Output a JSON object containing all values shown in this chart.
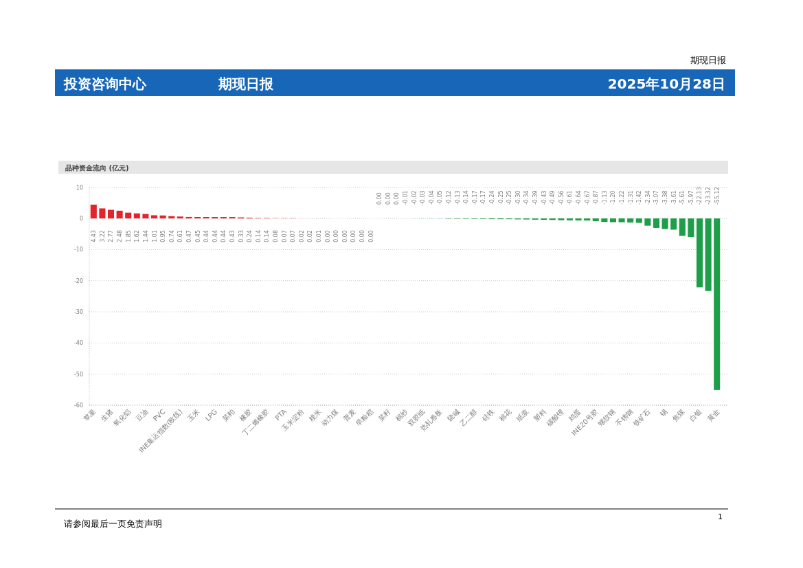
{
  "chart_data": {
    "type": "bar",
    "title": "品种资金流向 (亿元)",
    "annotations": [
      "期现日报",
      "投资咨询中心",
      "期现日报",
      "2025年10月28日",
      "请参阅最后一页免责声明",
      "1"
    ],
    "categories": [
      "苹果",
      null,
      "生猪",
      null,
      "氧化铝",
      null,
      "豆油",
      null,
      "PVC",
      null,
      "INE集运指数(欧线)",
      null,
      "玉米",
      null,
      "LPG",
      null,
      "菜粕",
      null,
      "橡胶",
      null,
      "丁二烯橡胶",
      null,
      "PTA",
      null,
      "玉米淀粉",
      null,
      "粳米",
      null,
      "动力煤",
      null,
      "普麦",
      null,
      "早籼稻",
      null,
      "菜籽",
      null,
      "棉纱",
      null,
      "双胶纸",
      null,
      "热轧卷板",
      null,
      "烧碱",
      null,
      "乙二醇",
      null,
      "硅铁",
      null,
      "棉花",
      null,
      "纸浆",
      null,
      "塑料",
      null,
      "碳酸锂",
      null,
      "鸡蛋",
      null,
      "INE20号胶",
      null,
      "螺纹钢",
      null,
      "不锈钢",
      null,
      "铁矿石",
      null,
      "锡",
      null,
      "焦煤",
      null,
      "白银",
      null,
      "黄金"
    ],
    "series": [
      {
        "color": "#e3242b",
        "values": [
          4.43,
          3.22,
          2.77,
          2.48,
          1.85,
          1.62,
          1.44,
          1.01,
          0.95,
          0.74,
          0.61,
          0.47,
          0.45,
          0.44,
          0.44,
          0.44,
          0.43,
          0.33,
          0.24,
          0.14,
          0.14,
          0.08,
          0.07,
          0.07,
          0.02,
          0.02,
          0.01,
          0,
          0,
          0,
          0,
          0,
          0,
          null,
          null,
          null,
          null,
          null,
          null,
          null,
          null,
          null,
          null,
          null,
          null,
          null,
          null,
          null,
          null,
          null,
          null,
          null,
          null,
          null,
          null,
          null,
          null,
          null,
          null,
          null,
          null,
          null,
          null,
          null,
          null,
          null,
          null,
          null,
          null,
          null,
          null,
          null,
          null
        ],
        "value_labels": [
          "4.43",
          "3.22",
          "2.77",
          "2.48",
          "1.85",
          "1.62",
          "1.44",
          "1.01",
          "0.95",
          "0.74",
          "0.61",
          "0.47",
          "0.45",
          "0.44",
          "0.44",
          "0.44",
          "0.43",
          "0.33",
          "0.24",
          "0.14",
          "0.14",
          "0.08",
          "0.07",
          "0.07",
          "0.02",
          "0.02",
          "0.01",
          "0.00",
          "0.00",
          "0.00",
          "0.00",
          "0.00",
          "0.00",
          null,
          null,
          null,
          null,
          null,
          null,
          null,
          null,
          null,
          null,
          null,
          null,
          null,
          null,
          null,
          null,
          null,
          null,
          null,
          null,
          null,
          null,
          null,
          null,
          null,
          null,
          null,
          null,
          null,
          null,
          null,
          null,
          null,
          null,
          null,
          null,
          null,
          null,
          null,
          null
        ]
      },
      {
        "color": "#1f9e4a",
        "values": [
          null,
          null,
          null,
          null,
          null,
          null,
          null,
          null,
          null,
          null,
          null,
          null,
          null,
          null,
          null,
          null,
          null,
          null,
          null,
          null,
          null,
          null,
          null,
          null,
          null,
          null,
          null,
          null,
          null,
          null,
          null,
          null,
          null,
          0,
          0,
          0,
          -0.01,
          -0.02,
          -0.03,
          -0.04,
          -0.05,
          -0.12,
          -0.13,
          -0.14,
          -0.17,
          -0.17,
          -0.24,
          -0.25,
          -0.25,
          -0.3,
          -0.34,
          -0.39,
          -0.43,
          -0.49,
          -0.56,
          -0.61,
          -0.64,
          -0.67,
          -0.87,
          -1.13,
          -1.2,
          -1.22,
          -1.31,
          -1.42,
          -2.34,
          -3.07,
          -3.38,
          -3.61,
          -5.61,
          -5.97,
          -22.13,
          -23.32,
          -55.12
        ],
        "value_labels": [
          null,
          null,
          null,
          null,
          null,
          null,
          null,
          null,
          null,
          null,
          null,
          null,
          null,
          null,
          null,
          null,
          null,
          null,
          null,
          null,
          null,
          null,
          null,
          null,
          null,
          null,
          null,
          null,
          null,
          null,
          null,
          null,
          null,
          "0.00",
          "0.00",
          "0.00",
          "-0.01",
          "-0.02",
          "-0.03",
          "-0.04",
          "-0.05",
          "-0.12",
          "-0.13",
          "-0.14",
          "-0.17",
          "-0.17",
          "-0.24",
          "-0.25",
          "-0.25",
          "-0.30",
          "-0.34",
          "-0.39",
          "-0.43",
          "-0.49",
          "-0.56",
          "-0.61",
          "-0.64",
          "-0.67",
          "-0.87",
          "-1.13",
          "-1.20",
          "-1.22",
          "-1.31",
          "-1.42",
          "-2.34",
          "-3.07",
          "-3.38",
          "-3.61",
          "-5.61",
          "-5.97",
          "-22.13",
          "-23.32",
          "-55.12"
        ]
      }
    ],
    "stacked": true,
    "ylim": [
      -60,
      10
    ],
    "yticks": [
      -60,
      -50,
      -40,
      -30,
      -20,
      -10,
      0,
      10
    ],
    "grid": "y"
  }
}
